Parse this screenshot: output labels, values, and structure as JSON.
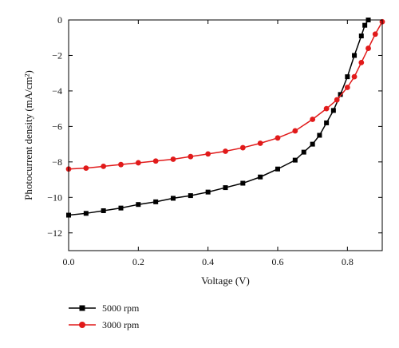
{
  "chart_data": {
    "type": "scatter",
    "title": "",
    "xlabel": "Voltage (V)",
    "ylabel": "Photocurrent density (mA/cm²)",
    "xlim": [
      0,
      0.9
    ],
    "ylim": [
      -13,
      0
    ],
    "x_ticks": [
      {
        "value": 0.0,
        "label": "0.0"
      },
      {
        "value": 0.2,
        "label": "0.2"
      },
      {
        "value": 0.4,
        "label": "0.4"
      },
      {
        "value": 0.6,
        "label": "0.6"
      },
      {
        "value": 0.8,
        "label": "0.8"
      }
    ],
    "y_ticks": [
      {
        "value": 0,
        "label": "0"
      },
      {
        "value": -2,
        "label": "−2"
      },
      {
        "value": -4,
        "label": "−4"
      },
      {
        "value": -6,
        "label": "−6"
      },
      {
        "value": -8,
        "label": "−8"
      },
      {
        "value": -10,
        "label": "−10"
      },
      {
        "value": -12,
        "label": "−12"
      }
    ],
    "grid": false,
    "legend_position": "bottom-left, below plot",
    "series": [
      {
        "name": "5000 rpm",
        "color": "#000000",
        "marker": "square",
        "x": [
          0,
          0.05,
          0.1,
          0.15,
          0.2,
          0.25,
          0.3,
          0.35,
          0.4,
          0.45,
          0.5,
          0.55,
          0.6,
          0.65,
          0.675,
          0.7,
          0.72,
          0.74,
          0.76,
          0.78,
          0.8,
          0.82,
          0.84,
          0.85,
          0.86
        ],
        "y": [
          -11.0,
          -10.9,
          -10.75,
          -10.6,
          -10.4,
          -10.25,
          -10.05,
          -9.9,
          -9.7,
          -9.45,
          -9.2,
          -8.85,
          -8.4,
          -7.9,
          -7.45,
          -7.0,
          -6.5,
          -5.8,
          -5.1,
          -4.2,
          -3.2,
          -2.0,
          -0.9,
          -0.3,
          0.0
        ]
      },
      {
        "name": "3000 rpm",
        "color": "#e11a1a",
        "marker": "circle",
        "x": [
          0,
          0.05,
          0.1,
          0.15,
          0.2,
          0.25,
          0.3,
          0.35,
          0.4,
          0.45,
          0.5,
          0.55,
          0.6,
          0.65,
          0.7,
          0.74,
          0.77,
          0.8,
          0.82,
          0.84,
          0.86,
          0.88,
          0.9
        ],
        "y": [
          -8.4,
          -8.35,
          -8.25,
          -8.15,
          -8.05,
          -7.95,
          -7.85,
          -7.7,
          -7.55,
          -7.4,
          -7.2,
          -6.95,
          -6.65,
          -6.25,
          -5.6,
          -5.0,
          -4.5,
          -3.8,
          -3.2,
          -2.4,
          -1.6,
          -0.8,
          -0.1
        ]
      }
    ]
  }
}
